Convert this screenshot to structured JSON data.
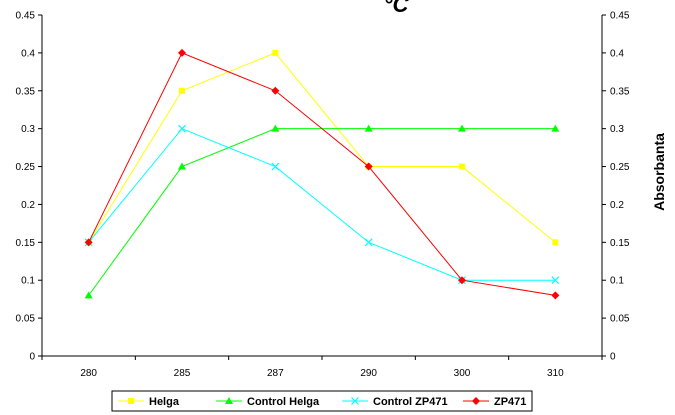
{
  "chart_data": {
    "type": "line",
    "title": "°C",
    "xlabel": "",
    "ylabel_right": "Absorbanta",
    "categories": [
      "280",
      "285",
      "287",
      "290",
      "300",
      "310"
    ],
    "ylim": [
      0,
      0.45
    ],
    "yticks": [
      "0",
      "0.05",
      "0.1",
      "0.15",
      "0.2",
      "0.25",
      "0.3",
      "0.35",
      "0.4",
      "0.45"
    ],
    "grid": false,
    "legend_position": "bottom",
    "series": [
      {
        "name": "Helga",
        "color": "#ffff00",
        "marker": "square",
        "values": [
          0.15,
          0.35,
          0.4,
          0.25,
          0.25,
          0.15
        ]
      },
      {
        "name": "Control Helga",
        "color": "#00ff00",
        "marker": "triangle",
        "values": [
          0.08,
          0.25,
          0.3,
          0.3,
          0.3,
          0.3
        ]
      },
      {
        "name": "Control ZP471",
        "color": "#00ffff",
        "marker": "x",
        "values": [
          0.15,
          0.3,
          0.25,
          0.15,
          0.1,
          0.1
        ]
      },
      {
        "name": "ZP471",
        "color": "#ff0000",
        "marker": "diamond",
        "values": [
          0.15,
          0.4,
          0.35,
          0.25,
          0.1,
          0.08
        ]
      }
    ]
  }
}
